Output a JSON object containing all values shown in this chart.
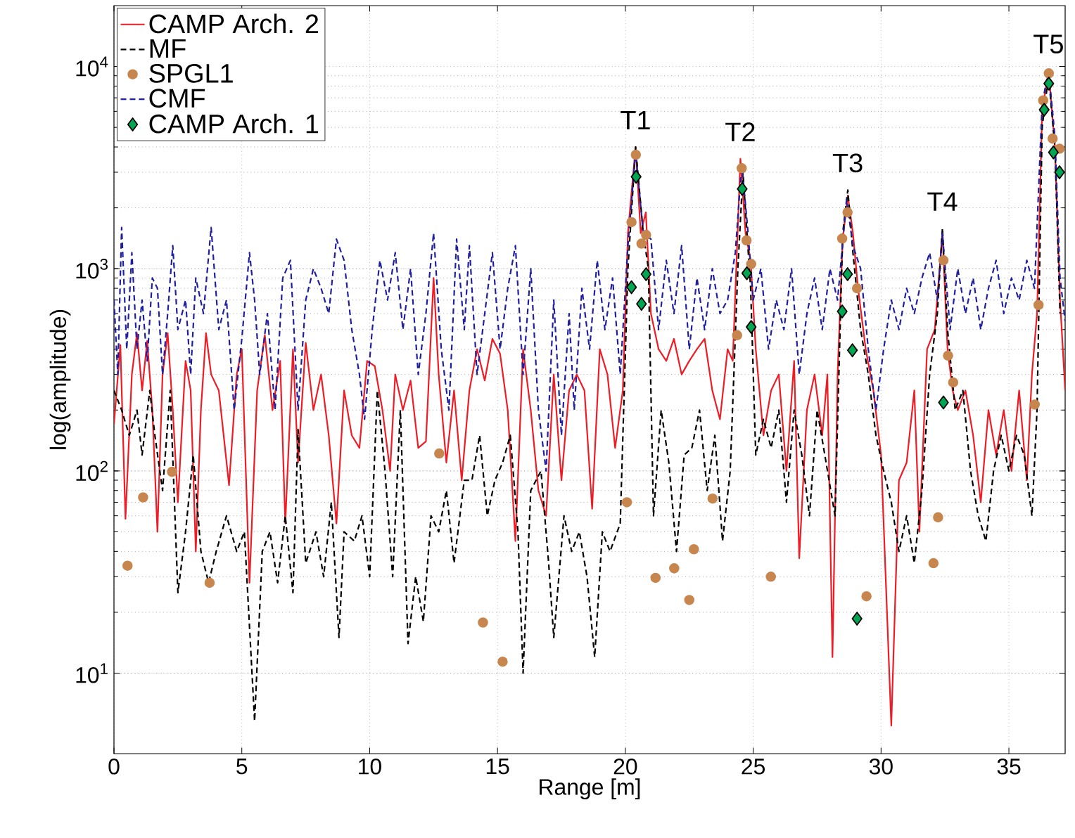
{
  "chart_data": {
    "type": "line",
    "xlabel": "Range [m]",
    "ylabel": "log(amplitude)",
    "xlim": [
      0,
      37.2
    ],
    "ylim": [
      4,
      20000
    ],
    "xticks": [
      0,
      5,
      10,
      15,
      20,
      25,
      30,
      35
    ],
    "yticks": [
      {
        "value": 10,
        "label": "10$^{1}$"
      },
      {
        "value": 100,
        "label": "10$^{2}$"
      },
      {
        "value": 1000,
        "label": "10$^{3}$"
      },
      {
        "value": 10000,
        "label": "10$^{4}$"
      }
    ],
    "log": "y",
    "grid": true,
    "legend": "top left",
    "annotations": [
      {
        "text": "T1",
        "x": 20.4,
        "y": 4000
      },
      {
        "text": "T2",
        "x": 24.5,
        "y": 3500
      },
      {
        "text": "T3",
        "x": 28.7,
        "y": 2450
      },
      {
        "text": "T4",
        "x": 32.4,
        "y": 1585
      },
      {
        "text": "T5",
        "x": 36.55,
        "y": 9500
      }
    ],
    "series": [
      {
        "name": "CAMP Arch. 2",
        "color": "#ee1c25",
        "line_style": "solid",
        "marker": "none",
        "x": [
          0,
          0.25,
          0.45,
          0.7,
          0.9,
          1.1,
          1.3,
          1.5,
          1.7,
          1.9,
          2.1,
          2.3,
          2.5,
          2.8,
          3.0,
          3.2,
          3.4,
          3.6,
          3.8,
          4.1,
          4.5,
          4.8,
          5.0,
          5.3,
          5.6,
          5.9,
          6.2,
          6.5,
          6.7,
          7.0,
          7.2,
          7.5,
          7.8,
          8.1,
          8.4,
          8.7,
          9.0,
          9.3,
          9.6,
          9.9,
          10.2,
          10.5,
          10.8,
          11.0,
          11.3,
          11.6,
          11.9,
          12.2,
          12.5,
          12.7,
          13.0,
          13.3,
          13.6,
          13.9,
          14.2,
          14.5,
          14.8,
          15.1,
          15.4,
          15.7,
          16.0,
          16.3,
          16.6,
          16.9,
          17.2,
          17.5,
          17.8,
          18.1,
          18.4,
          18.7,
          19.0,
          19.3,
          19.6,
          19.9,
          20.1,
          20.4,
          20.6,
          20.8,
          21.0,
          21.3,
          21.6,
          21.9,
          22.2,
          22.5,
          22.8,
          23.1,
          23.4,
          23.7,
          24.0,
          24.2,
          24.5,
          24.7,
          24.9,
          25.1,
          25.4,
          25.7,
          26.0,
          26.3,
          26.6,
          26.8,
          27.1,
          27.4,
          27.7,
          27.9,
          28.1,
          28.3,
          28.5,
          28.7,
          28.9,
          29.1,
          29.4,
          29.7,
          30.0,
          30.4,
          30.7,
          31.0,
          31.3,
          31.5,
          31.8,
          32.1,
          32.4,
          32.6,
          32.8,
          33.0,
          33.3,
          33.6,
          33.9,
          34.2,
          34.5,
          34.8,
          35.1,
          35.4,
          35.7,
          35.9,
          36.1,
          36.3,
          36.55,
          36.8,
          37.0,
          37.2
        ],
        "values": [
          170,
          420,
          58,
          300,
          480,
          250,
          440,
          200,
          50,
          300,
          480,
          200,
          70,
          350,
          250,
          40,
          200,
          480,
          300,
          250,
          85,
          300,
          400,
          28,
          250,
          470,
          200,
          350,
          55,
          400,
          110,
          430,
          200,
          300,
          150,
          55,
          250,
          150,
          130,
          350,
          330,
          200,
          100,
          300,
          200,
          280,
          130,
          140,
          900,
          300,
          110,
          250,
          90,
          250,
          400,
          280,
          450,
          380,
          200,
          45,
          400,
          200,
          80,
          60,
          300,
          90,
          250,
          300,
          250,
          65,
          400,
          300,
          130,
          250,
          1500,
          4000,
          1500,
          1900,
          600,
          400,
          350,
          450,
          300,
          350,
          400,
          450,
          250,
          180,
          400,
          350,
          3500,
          1500,
          1100,
          400,
          150,
          250,
          300,
          100,
          350,
          37,
          200,
          300,
          150,
          300,
          12,
          300,
          1400,
          2300,
          1500,
          800,
          400,
          250,
          120,
          5.5,
          90,
          110,
          250,
          50,
          400,
          500,
          1500,
          400,
          250,
          200,
          250,
          150,
          70,
          200,
          120,
          200,
          100,
          250,
          90,
          300,
          600,
          6000,
          9500,
          4000,
          700,
          250
        ]
      },
      {
        "name": "MF",
        "color": "#000000",
        "line_style": "dashed",
        "marker": "none",
        "x": [
          0,
          0.3,
          0.6,
          0.9,
          1.1,
          1.4,
          1.6,
          1.9,
          2.2,
          2.5,
          2.8,
          3.1,
          3.4,
          3.7,
          4.0,
          4.4,
          4.8,
          5.1,
          5.5,
          5.8,
          6.1,
          6.4,
          6.7,
          7.0,
          7.2,
          7.5,
          7.9,
          8.2,
          8.5,
          8.8,
          9.0,
          9.4,
          9.7,
          10.0,
          10.3,
          10.6,
          10.9,
          11.2,
          11.5,
          11.8,
          12.1,
          12.4,
          12.7,
          13.0,
          13.3,
          13.7,
          14.0,
          14.3,
          14.6,
          14.9,
          15.2,
          15.5,
          15.8,
          16.0,
          16.3,
          16.7,
          17.0,
          17.2,
          17.6,
          17.9,
          18.2,
          18.5,
          18.8,
          19.1,
          19.4,
          19.8,
          20.1,
          20.4,
          20.7,
          20.9,
          21.1,
          21.4,
          21.7,
          22.0,
          22.3,
          22.6,
          22.9,
          23.2,
          23.5,
          23.8,
          24.1,
          24.4,
          24.6,
          24.9,
          25.1,
          25.4,
          25.7,
          26.0,
          26.3,
          26.6,
          26.9,
          27.2,
          27.5,
          27.8,
          28.2,
          28.5,
          28.7,
          28.9,
          29.2,
          29.5,
          29.8,
          30.1,
          30.4,
          30.7,
          31.0,
          31.3,
          31.6,
          31.9,
          32.2,
          32.4,
          32.6,
          32.9,
          33.2,
          33.5,
          33.8,
          34.1,
          34.4,
          34.7,
          35.0,
          35.3,
          35.6,
          35.9,
          36.1,
          36.3,
          36.55,
          36.8,
          37.0
        ],
        "values": [
          250,
          200,
          150,
          200,
          120,
          250,
          150,
          80,
          250,
          25,
          50,
          120,
          40,
          28,
          40,
          60,
          40,
          50,
          5.8,
          40,
          50,
          28,
          60,
          25,
          160,
          35,
          50,
          30,
          70,
          15,
          50,
          45,
          60,
          30,
          250,
          100,
          30,
          200,
          14,
          30,
          18,
          60,
          50,
          80,
          35,
          90,
          90,
          150,
          60,
          90,
          110,
          150,
          50,
          10,
          80,
          100,
          35,
          15,
          60,
          40,
          50,
          30,
          12,
          50,
          40,
          55,
          1000,
          4000,
          1500,
          1000,
          60,
          200,
          110,
          40,
          120,
          130,
          200,
          80,
          150,
          45,
          100,
          1000,
          3000,
          800,
          120,
          180,
          130,
          200,
          70,
          200,
          120,
          60,
          200,
          120,
          60,
          1500,
          2450,
          1200,
          500,
          300,
          150,
          100,
          70,
          40,
          60,
          35,
          80,
          300,
          600,
          1585,
          500,
          200,
          250,
          100,
          60,
          45,
          100,
          150,
          100,
          150,
          120,
          60,
          200,
          5000,
          9000,
          4000,
          600
        ]
      },
      {
        "name": "SPGL1",
        "type": "scatter",
        "color": "#c8864f",
        "marker": "circle",
        "x": [
          0.53,
          1.14,
          2.27,
          3.74,
          12.72,
          14.43,
          15.2,
          20.06,
          21.18,
          21.91,
          22.5,
          22.68,
          23.41,
          25.69,
          29.43,
          32.05,
          32.23,
          36.01,
          20.41,
          20.24,
          20.81,
          20.63,
          24.55,
          24.74,
          24.92,
          24.37,
          28.69,
          28.48,
          29.06,
          32.44,
          32.62,
          32.82,
          36.16,
          36.56,
          36.34,
          36.71,
          36.98
        ],
        "values": [
          34,
          74,
          99,
          28,
          122,
          17.8,
          11.4,
          70,
          29.6,
          33,
          23,
          41,
          73,
          30,
          24,
          35,
          59,
          213,
          3660,
          1700,
          1470,
          1330,
          3140,
          1380,
          1055,
          469,
          1900,
          1410,
          800,
          1100,
          372,
          274,
          662,
          9250,
          6800,
          4400,
          3920
        ]
      },
      {
        "name": "CMF",
        "color": "#1f1fa0",
        "line_style": "dashed",
        "marker": "none",
        "x": [
          0,
          0.15,
          0.3,
          0.5,
          0.7,
          0.9,
          1.1,
          1.3,
          1.5,
          1.7,
          1.9,
          2.1,
          2.3,
          2.5,
          2.8,
          3.0,
          3.2,
          3.5,
          3.8,
          4.1,
          4.4,
          4.7,
          5.0,
          5.3,
          5.5,
          5.7,
          6.0,
          6.3,
          6.6,
          6.9,
          7.2,
          7.5,
          7.8,
          8.1,
          8.4,
          8.7,
          9.0,
          9.3,
          9.6,
          9.8,
          10.1,
          10.4,
          10.7,
          11.0,
          11.3,
          11.6,
          11.9,
          12.2,
          12.5,
          12.8,
          13.1,
          13.4,
          13.7,
          13.9,
          14.2,
          14.5,
          14.8,
          15.1,
          15.4,
          15.7,
          16.0,
          16.3,
          16.6,
          16.9,
          17.2,
          17.5,
          17.8,
          18.0,
          18.3,
          18.6,
          18.9,
          19.2,
          19.5,
          19.8,
          20.1,
          20.4,
          20.7,
          21.0,
          21.3,
          21.6,
          21.9,
          22.2,
          22.5,
          22.8,
          23.1,
          23.4,
          23.7,
          24.0,
          24.3,
          24.55,
          24.8,
          25.0,
          25.3,
          25.6,
          25.9,
          26.2,
          26.5,
          26.8,
          27.1,
          27.4,
          27.7,
          28.0,
          28.3,
          28.65,
          28.9,
          29.2,
          29.5,
          29.8,
          30.1,
          30.4,
          30.7,
          31.0,
          31.3,
          31.6,
          31.9,
          32.2,
          32.4,
          32.7,
          33.0,
          33.3,
          33.6,
          33.9,
          34.2,
          34.5,
          34.8,
          35.1,
          35.4,
          35.7,
          36.0,
          36.3,
          36.55,
          36.8,
          37.0,
          37.2
        ],
        "values": [
          700,
          300,
          1600,
          400,
          1200,
          400,
          700,
          350,
          900,
          800,
          300,
          600,
          1300,
          500,
          700,
          300,
          900,
          600,
          1600,
          500,
          700,
          200,
          450,
          1200,
          700,
          300,
          600,
          200,
          900,
          1100,
          200,
          700,
          1000,
          800,
          600,
          1400,
          1100,
          500,
          300,
          180,
          500,
          1100,
          700,
          1200,
          500,
          1000,
          300,
          600,
          1500,
          400,
          200,
          1400,
          500,
          1300,
          300,
          600,
          1200,
          400,
          800,
          1300,
          300,
          1000,
          200,
          100,
          700,
          150,
          600,
          200,
          800,
          400,
          1100,
          500,
          900,
          300,
          1300,
          3800,
          1500,
          1400,
          500,
          1100,
          600,
          1300,
          400,
          900,
          500,
          1000,
          600,
          700,
          1200,
          3300,
          1500,
          700,
          1000,
          400,
          700,
          500,
          1000,
          300,
          600,
          900,
          500,
          1000,
          700,
          2200,
          1300,
          1000,
          400,
          200,
          400,
          700,
          500,
          800,
          600,
          900,
          1200,
          700,
          1500,
          500,
          1000,
          600,
          900,
          500,
          800,
          1100,
          600,
          900,
          700,
          1100,
          800,
          6500,
          9600,
          4500,
          900,
          550
        ]
      },
      {
        "name": "CAMP Arch. 1",
        "type": "scatter",
        "color": "#00a651",
        "marker": "diamond",
        "x": [
          20.42,
          20.24,
          20.81,
          20.63,
          24.57,
          24.75,
          24.92,
          28.69,
          28.48,
          28.88,
          32.44,
          29.06,
          36.56,
          36.38,
          36.74,
          36.98
        ],
        "values": [
          2850,
          810,
          940,
          670,
          2480,
          950,
          515,
          940,
          615,
          395,
          218,
          18.6,
          8230,
          6110,
          3760,
          3000
        ]
      }
    ]
  }
}
